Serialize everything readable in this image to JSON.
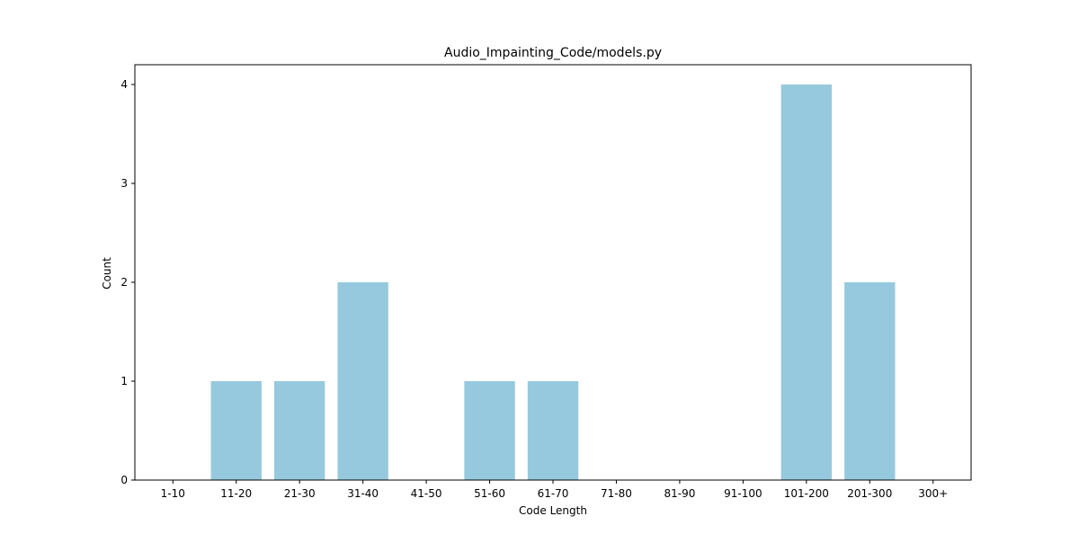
{
  "chart_data": {
    "type": "bar",
    "title": "Audio_Impainting_Code/models.py",
    "xlabel": "Code Length",
    "ylabel": "Count",
    "categories": [
      "1-10",
      "11-20",
      "21-30",
      "31-40",
      "41-50",
      "51-60",
      "61-70",
      "71-80",
      "81-90",
      "91-100",
      "101-200",
      "201-300",
      "300+"
    ],
    "values": [
      0,
      1,
      1,
      2,
      0,
      1,
      1,
      0,
      0,
      0,
      4,
      2,
      0
    ],
    "ylim": [
      0,
      4.2
    ],
    "yticks": [
      0,
      1,
      2,
      3,
      4
    ],
    "bar_color": "#96c9dd",
    "grid": false,
    "legend": "none"
  }
}
